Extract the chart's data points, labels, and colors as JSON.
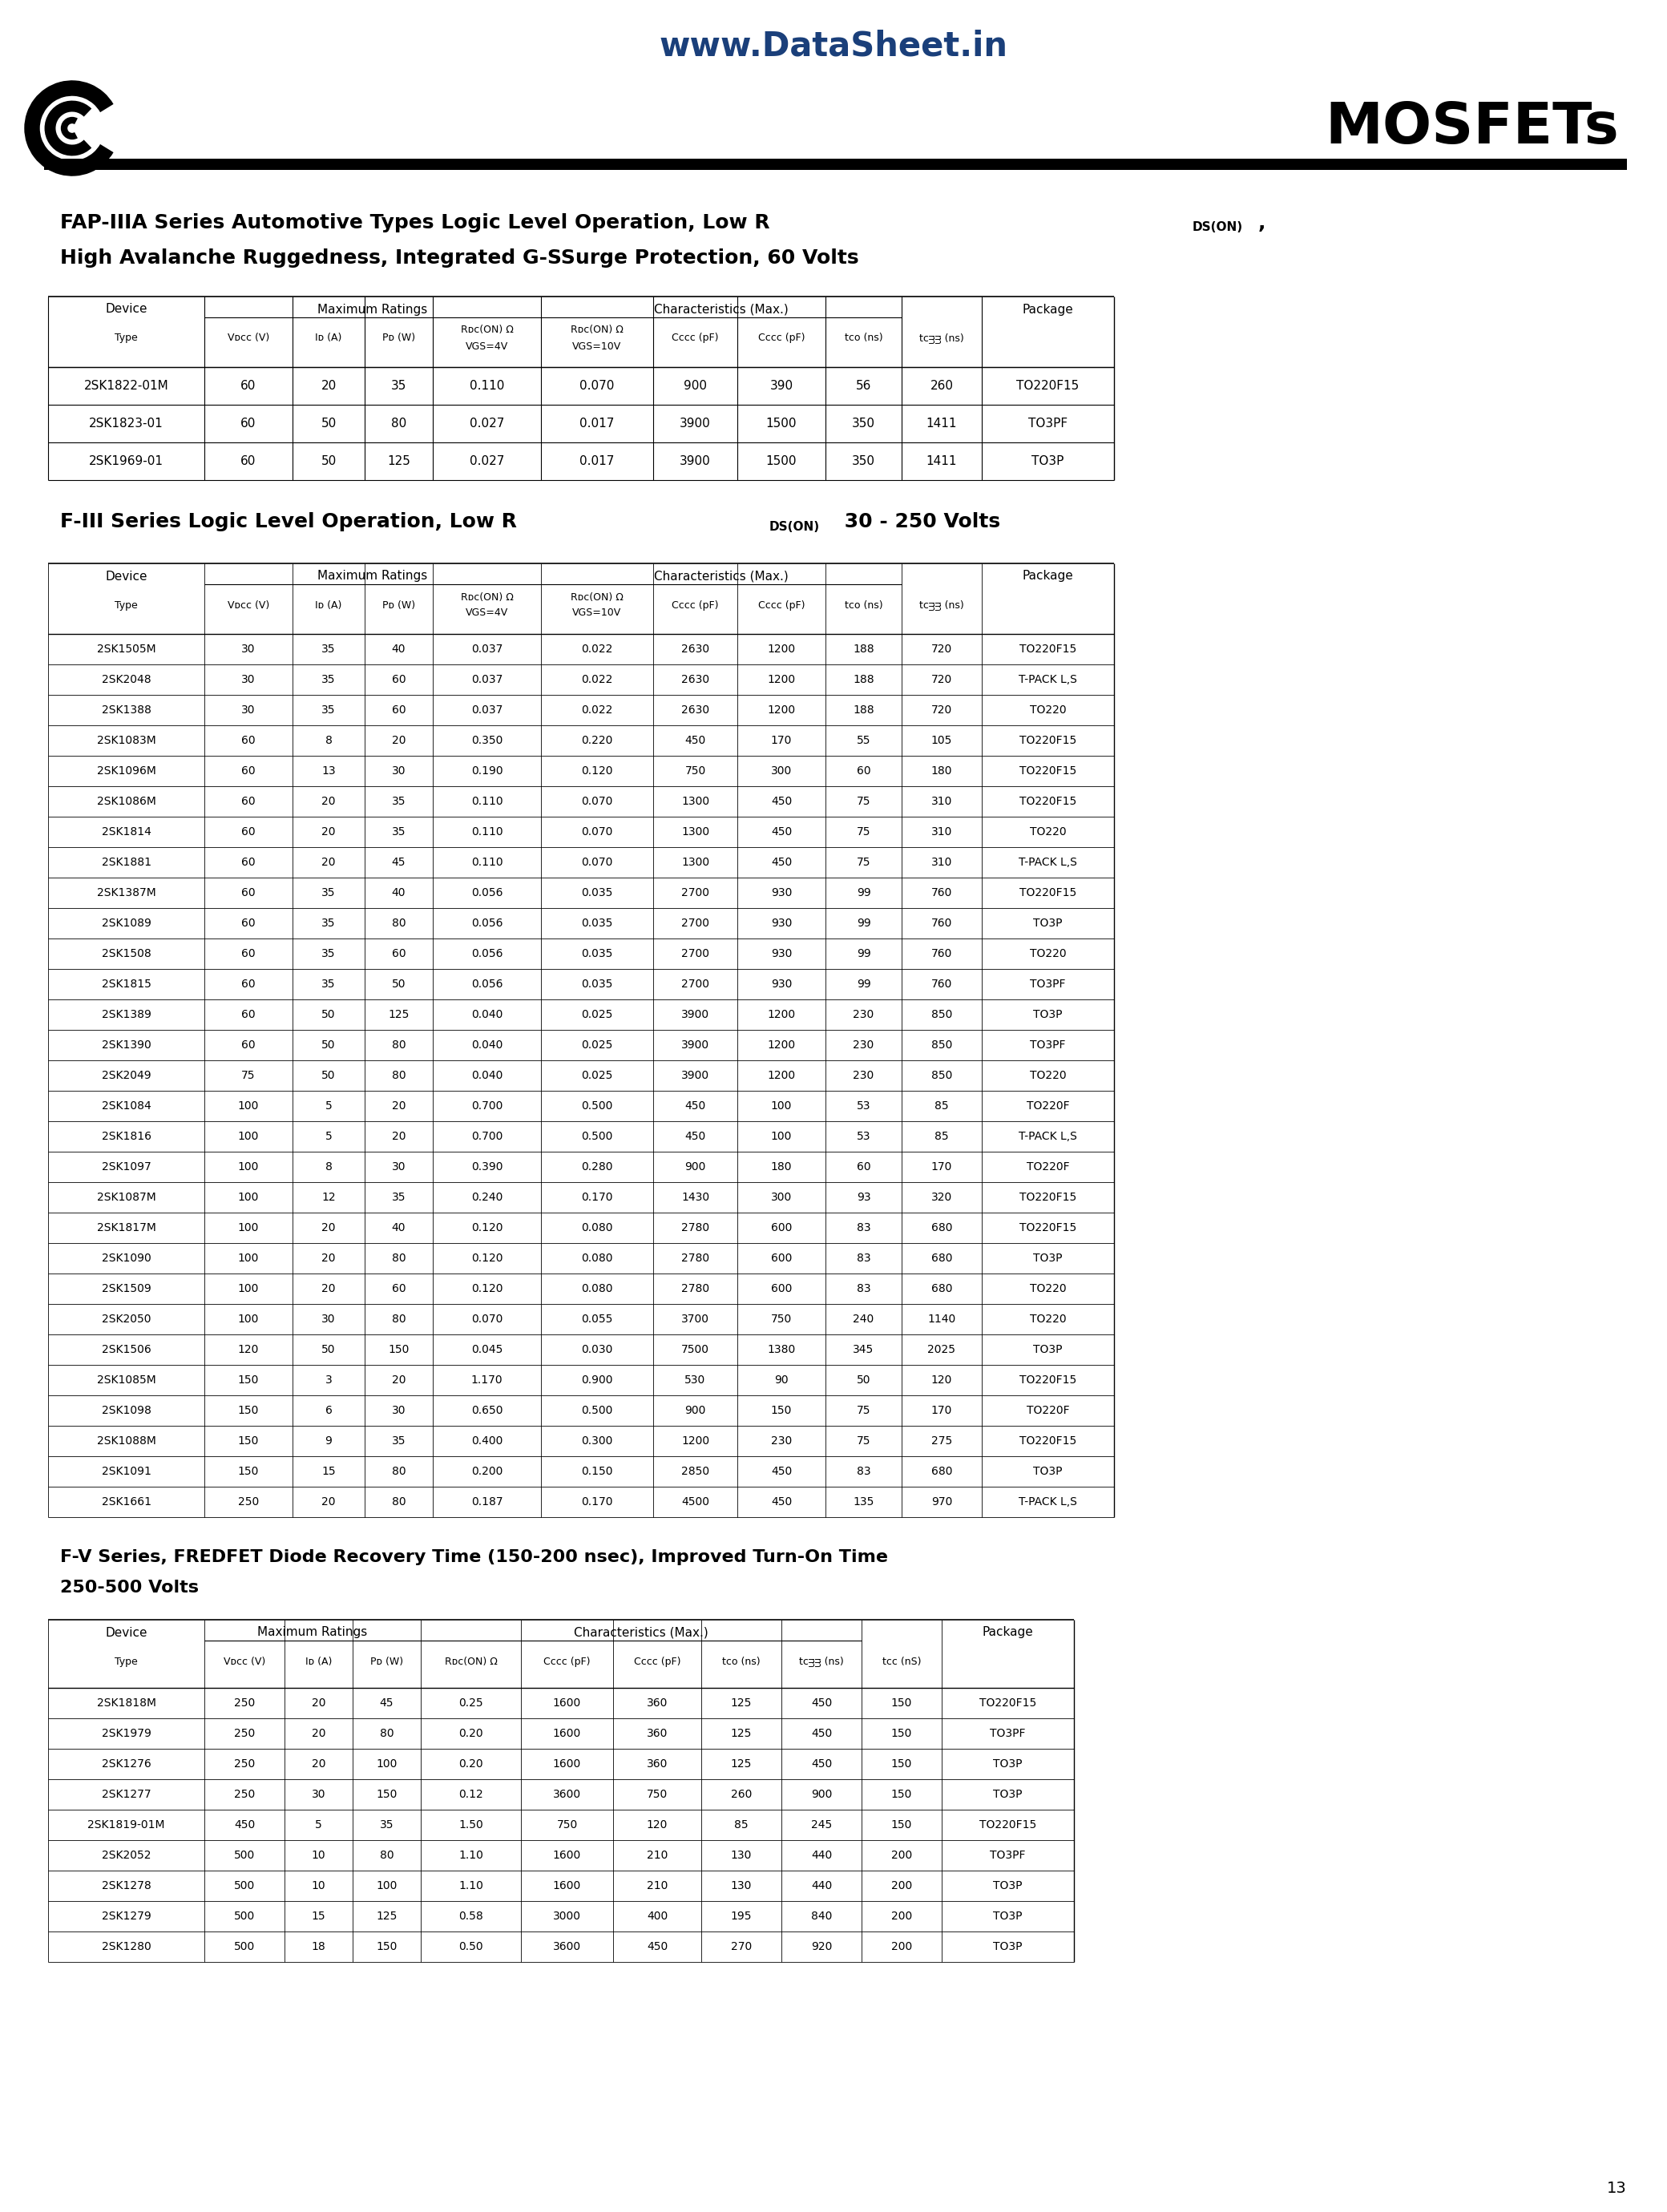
{
  "page_bg": "#ffffff",
  "header_url": "www.DataSheet.in",
  "header_url_color": "#1a3f7a",
  "mosfets_title": "MOSFETs",
  "page_number": "13",
  "section1_title_main": "FAP-IIIA Series Automotive Types Logic Level Operation, Low R",
  "section1_title_sub": "DS(ON)",
  "section1_title_end": ",",
  "section1_line2": "High Avalanche Ruggedness, Integrated G-SSurge Protection, 60 Volts",
  "section1_data": [
    [
      "2SK1822-01M",
      "60",
      "20",
      "35",
      "0.110",
      "0.070",
      "900",
      "390",
      "56",
      "260",
      "TO220F15"
    ],
    [
      "2SK1823-01",
      "60",
      "50",
      "80",
      "0.027",
      "0.017",
      "3900",
      "1500",
      "350",
      "1411",
      "TO3PF"
    ],
    [
      "2SK1969-01",
      "60",
      "50",
      "125",
      "0.027",
      "0.017",
      "3900",
      "1500",
      "350",
      "1411",
      "TO3P"
    ]
  ],
  "section2_title_main": "F-III Series Logic Level Operation, Low R",
  "section2_title_sub": "DS(ON)",
  "section2_title_end": " 30 - 250 Volts",
  "section2_data": [
    [
      "2SK1505M",
      "30",
      "35",
      "40",
      "0.037",
      "0.022",
      "2630",
      "1200",
      "188",
      "720",
      "TO220F15"
    ],
    [
      "2SK2048",
      "30",
      "35",
      "60",
      "0.037",
      "0.022",
      "2630",
      "1200",
      "188",
      "720",
      "T-PACK L,S"
    ],
    [
      "2SK1388",
      "30",
      "35",
      "60",
      "0.037",
      "0.022",
      "2630",
      "1200",
      "188",
      "720",
      "TO220"
    ],
    [
      "2SK1083M",
      "60",
      "8",
      "20",
      "0.350",
      "0.220",
      "450",
      "170",
      "55",
      "105",
      "TO220F15"
    ],
    [
      "2SK1096M",
      "60",
      "13",
      "30",
      "0.190",
      "0.120",
      "750",
      "300",
      "60",
      "180",
      "TO220F15"
    ],
    [
      "2SK1086M",
      "60",
      "20",
      "35",
      "0.110",
      "0.070",
      "1300",
      "450",
      "75",
      "310",
      "TO220F15"
    ],
    [
      "2SK1814",
      "60",
      "20",
      "35",
      "0.110",
      "0.070",
      "1300",
      "450",
      "75",
      "310",
      "TO220"
    ],
    [
      "2SK1881",
      "60",
      "20",
      "45",
      "0.110",
      "0.070",
      "1300",
      "450",
      "75",
      "310",
      "T-PACK L,S"
    ],
    [
      "2SK1387M",
      "60",
      "35",
      "40",
      "0.056",
      "0.035",
      "2700",
      "930",
      "99",
      "760",
      "TO220F15"
    ],
    [
      "2SK1089",
      "60",
      "35",
      "80",
      "0.056",
      "0.035",
      "2700",
      "930",
      "99",
      "760",
      "TO3P"
    ],
    [
      "2SK1508",
      "60",
      "35",
      "60",
      "0.056",
      "0.035",
      "2700",
      "930",
      "99",
      "760",
      "TO220"
    ],
    [
      "2SK1815",
      "60",
      "35",
      "50",
      "0.056",
      "0.035",
      "2700",
      "930",
      "99",
      "760",
      "TO3PF"
    ],
    [
      "2SK1389",
      "60",
      "50",
      "125",
      "0.040",
      "0.025",
      "3900",
      "1200",
      "230",
      "850",
      "TO3P"
    ],
    [
      "2SK1390",
      "60",
      "50",
      "80",
      "0.040",
      "0.025",
      "3900",
      "1200",
      "230",
      "850",
      "TO3PF"
    ],
    [
      "2SK2049",
      "75",
      "50",
      "80",
      "0.040",
      "0.025",
      "3900",
      "1200",
      "230",
      "850",
      "TO220"
    ],
    [
      "2SK1084",
      "100",
      "5",
      "20",
      "0.700",
      "0.500",
      "450",
      "100",
      "53",
      "85",
      "TO220F"
    ],
    [
      "2SK1816",
      "100",
      "5",
      "20",
      "0.700",
      "0.500",
      "450",
      "100",
      "53",
      "85",
      "T-PACK L,S"
    ],
    [
      "2SK1097",
      "100",
      "8",
      "30",
      "0.390",
      "0.280",
      "900",
      "180",
      "60",
      "170",
      "TO220F"
    ],
    [
      "2SK1087M",
      "100",
      "12",
      "35",
      "0.240",
      "0.170",
      "1430",
      "300",
      "93",
      "320",
      "TO220F15"
    ],
    [
      "2SK1817M",
      "100",
      "20",
      "40",
      "0.120",
      "0.080",
      "2780",
      "600",
      "83",
      "680",
      "TO220F15"
    ],
    [
      "2SK1090",
      "100",
      "20",
      "80",
      "0.120",
      "0.080",
      "2780",
      "600",
      "83",
      "680",
      "TO3P"
    ],
    [
      "2SK1509",
      "100",
      "20",
      "60",
      "0.120",
      "0.080",
      "2780",
      "600",
      "83",
      "680",
      "TO220"
    ],
    [
      "2SK2050",
      "100",
      "30",
      "80",
      "0.070",
      "0.055",
      "3700",
      "750",
      "240",
      "1140",
      "TO220"
    ],
    [
      "2SK1506",
      "120",
      "50",
      "150",
      "0.045",
      "0.030",
      "7500",
      "1380",
      "345",
      "2025",
      "TO3P"
    ],
    [
      "2SK1085M",
      "150",
      "3",
      "20",
      "1.170",
      "0.900",
      "530",
      "90",
      "50",
      "120",
      "TO220F15"
    ],
    [
      "2SK1098",
      "150",
      "6",
      "30",
      "0.650",
      "0.500",
      "900",
      "150",
      "75",
      "170",
      "TO220F"
    ],
    [
      "2SK1088M",
      "150",
      "9",
      "35",
      "0.400",
      "0.300",
      "1200",
      "230",
      "75",
      "275",
      "TO220F15"
    ],
    [
      "2SK1091",
      "150",
      "15",
      "80",
      "0.200",
      "0.150",
      "2850",
      "450",
      "83",
      "680",
      "TO3P"
    ],
    [
      "2SK1661",
      "250",
      "20",
      "80",
      "0.187",
      "0.170",
      "4500",
      "450",
      "135",
      "970",
      "T-PACK L,S"
    ]
  ],
  "section3_title": "F-V Series, FREDFET Diode Recovery Time (150-200 nsec), Improved Turn-On Time",
  "section3_line2": "250-500 Volts",
  "section3_data": [
    [
      "2SK1818M",
      "250",
      "20",
      "45",
      "0.25",
      "1600",
      "360",
      "125",
      "450",
      "150",
      "TO220F15"
    ],
    [
      "2SK1979",
      "250",
      "20",
      "80",
      "0.20",
      "1600",
      "360",
      "125",
      "450",
      "150",
      "TO3PF"
    ],
    [
      "2SK1276",
      "250",
      "20",
      "100",
      "0.20",
      "1600",
      "360",
      "125",
      "450",
      "150",
      "TO3P"
    ],
    [
      "2SK1277",
      "250",
      "30",
      "150",
      "0.12",
      "3600",
      "750",
      "260",
      "900",
      "150",
      "TO3P"
    ],
    [
      "2SK1819-01M",
      "450",
      "5",
      "35",
      "1.50",
      "750",
      "120",
      "85",
      "245",
      "150",
      "TO220F15"
    ],
    [
      "2SK2052",
      "500",
      "10",
      "80",
      "1.10",
      "1600",
      "210",
      "130",
      "440",
      "200",
      "TO3PF"
    ],
    [
      "2SK1278",
      "500",
      "10",
      "100",
      "1.10",
      "1600",
      "210",
      "130",
      "440",
      "200",
      "TO3P"
    ],
    [
      "2SK1279",
      "500",
      "15",
      "125",
      "0.58",
      "3000",
      "400",
      "195",
      "840",
      "200",
      "TO3P"
    ],
    [
      "2SK1280",
      "500",
      "18",
      "150",
      "0.50",
      "3600",
      "450",
      "270",
      "920",
      "200",
      "TO3P"
    ]
  ]
}
